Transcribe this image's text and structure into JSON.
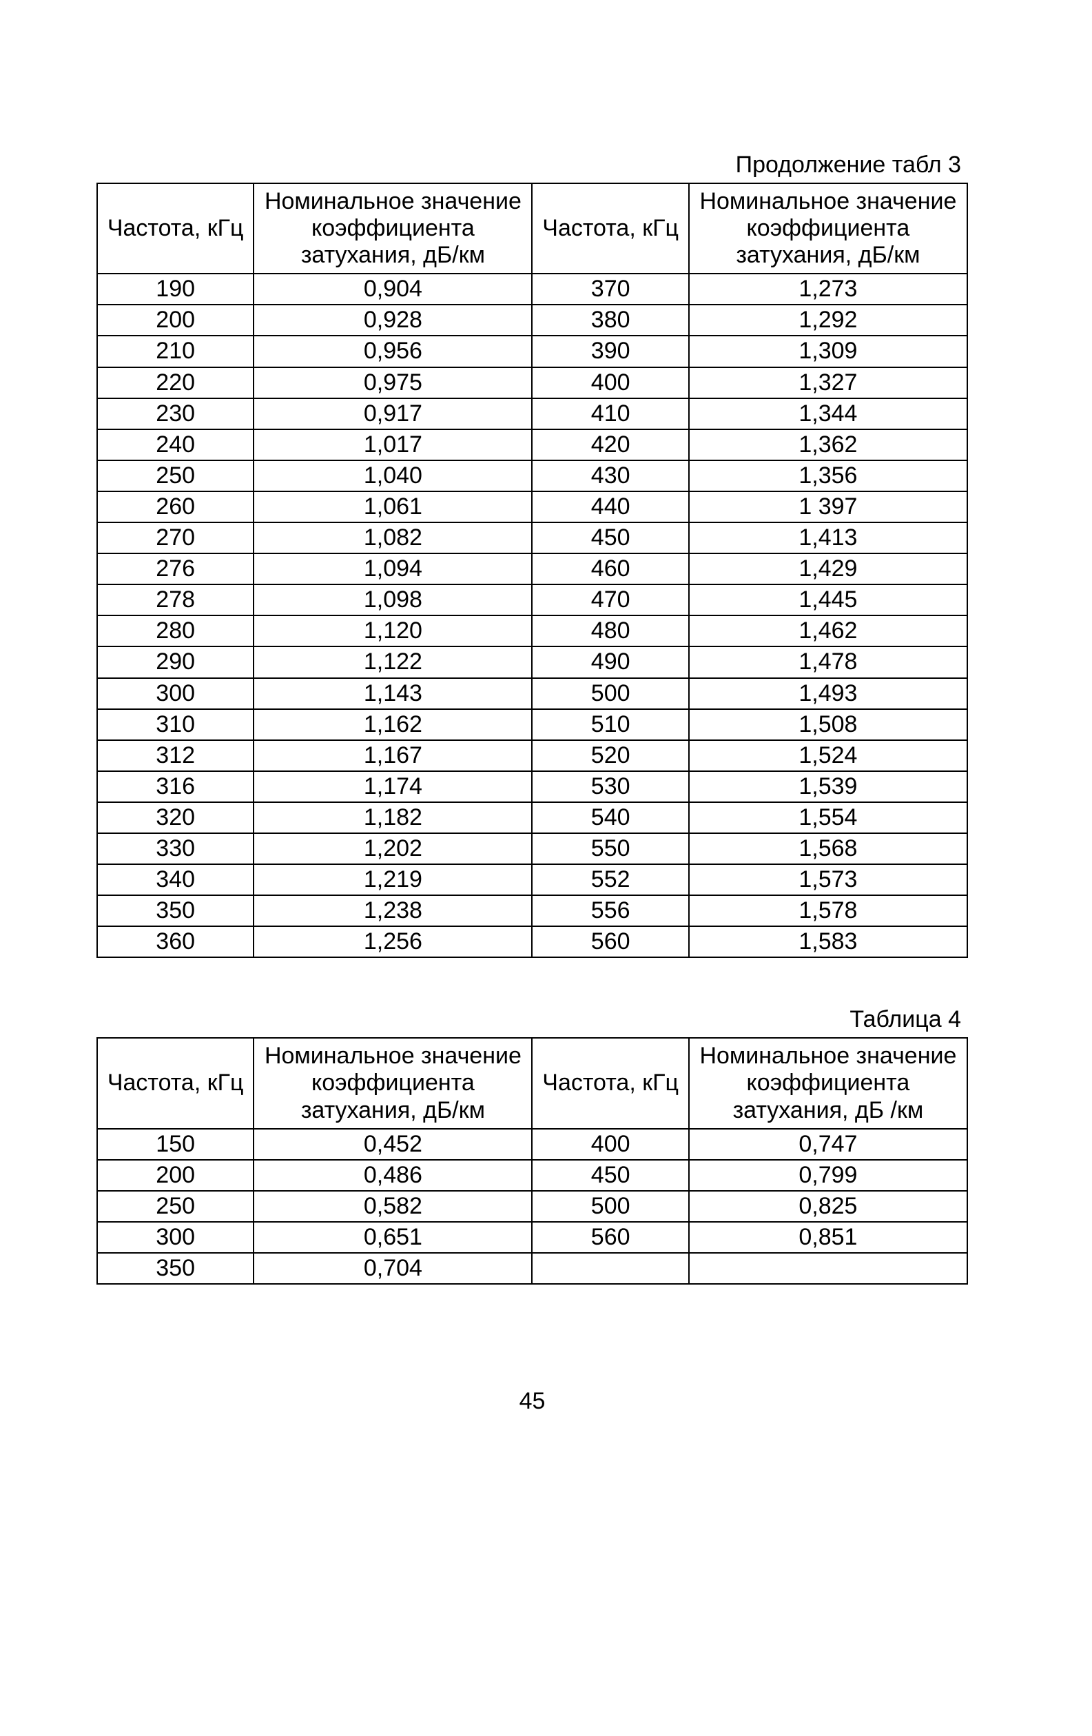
{
  "page_number": "45",
  "table3": {
    "caption": "Продолжение табл 3",
    "columns": {
      "freq": "Частота, кГц",
      "value": "Номинальное значение коэффициента затухания, дБ/км"
    },
    "rows": [
      {
        "f1": "190",
        "v1": "0,904",
        "f2": "370",
        "v2": "1,273"
      },
      {
        "f1": "200",
        "v1": "0,928",
        "f2": "380",
        "v2": "1,292"
      },
      {
        "f1": "210",
        "v1": "0,956",
        "f2": "390",
        "v2": "1,309"
      },
      {
        "f1": "220",
        "v1": "0,975",
        "f2": "400",
        "v2": "1,327"
      },
      {
        "f1": "230",
        "v1": "0,917",
        "f2": "410",
        "v2": "1,344"
      },
      {
        "f1": "240",
        "v1": "1,017",
        "f2": "420",
        "v2": "1,362"
      },
      {
        "f1": "250",
        "v1": "1,040",
        "f2": "430",
        "v2": "1,356"
      },
      {
        "f1": "260",
        "v1": "1,061",
        "f2": "440",
        "v2": "1 397"
      },
      {
        "f1": "270",
        "v1": "1,082",
        "f2": "450",
        "v2": "1,413"
      },
      {
        "f1": "276",
        "v1": "1,094",
        "f2": "460",
        "v2": "1,429"
      },
      {
        "f1": "278",
        "v1": "1,098",
        "f2": "470",
        "v2": "1,445"
      },
      {
        "f1": "280",
        "v1": "1,120",
        "f2": "480",
        "v2": "1,462"
      },
      {
        "f1": "290",
        "v1": "1,122",
        "f2": "490",
        "v2": "1,478"
      },
      {
        "f1": "300",
        "v1": "1,143",
        "f2": "500",
        "v2": "1,493"
      },
      {
        "f1": "310",
        "v1": "1,162",
        "f2": "510",
        "v2": "1,508"
      },
      {
        "f1": "312",
        "v1": "1,167",
        "f2": "520",
        "v2": "1,524"
      },
      {
        "f1": "316",
        "v1": "1,174",
        "f2": "530",
        "v2": "1,539"
      },
      {
        "f1": "320",
        "v1": "1,182",
        "f2": "540",
        "v2": "1,554"
      },
      {
        "f1": "330",
        "v1": "1,202",
        "f2": "550",
        "v2": "1,568"
      },
      {
        "f1": "340",
        "v1": "1,219",
        "f2": "552",
        "v2": "1,573"
      },
      {
        "f1": "350",
        "v1": "1,238",
        "f2": "556",
        "v2": "1,578"
      },
      {
        "f1": "360",
        "v1": "1,256",
        "f2": "560",
        "v2": "1,583"
      }
    ]
  },
  "table4": {
    "caption": "Таблица 4",
    "columns": {
      "freq": "Частота, кГц",
      "value_left": "Номинальное значение коэффициента затухания, дБ/км",
      "value_right": "Номинальное значение коэффициента затухания, дБ /км"
    },
    "rows": [
      {
        "f1": "150",
        "v1": "0,452",
        "f2": "400",
        "v2": "0,747"
      },
      {
        "f1": "200",
        "v1": "0,486",
        "f2": "450",
        "v2": "0,799"
      },
      {
        "f1": "250",
        "v1": "0,582",
        "f2": "500",
        "v2": "0,825"
      },
      {
        "f1": "300",
        "v1": "0,651",
        "f2": "560",
        "v2": "0,851"
      },
      {
        "f1": "350",
        "v1": "0,704",
        "f2": "",
        "v2": ""
      }
    ]
  }
}
